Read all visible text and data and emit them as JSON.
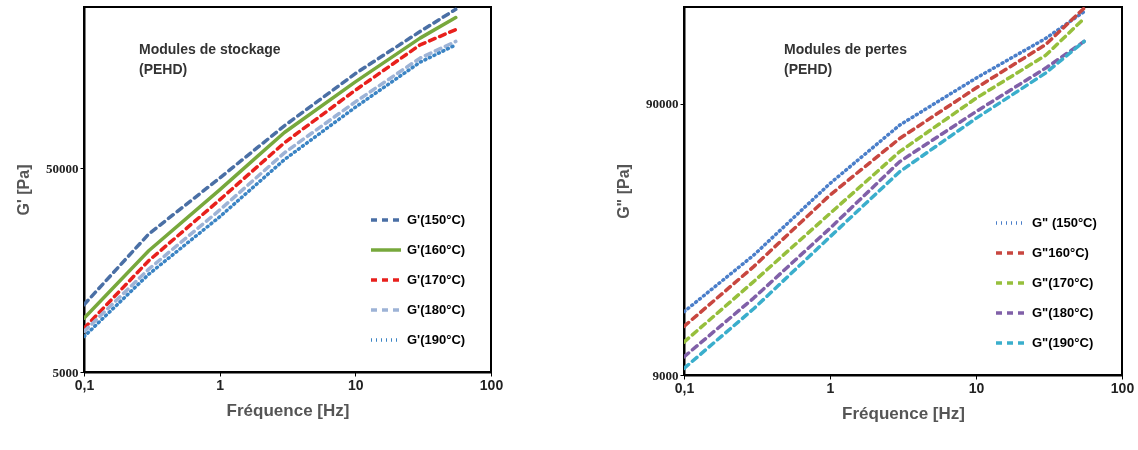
{
  "chart_data": [
    {
      "type": "line",
      "title": "Modules de stockage",
      "subtitle": "(PEHD)",
      "xlabel": "Fréquence [Hz]",
      "ylabel": "G' [Pa]",
      "log": "xy",
      "grid": false,
      "legend": "bottom right",
      "xlim": [
        0.1,
        100
      ],
      "xticks": [
        {
          "value": 0.1,
          "label": "0,1"
        },
        1,
        10,
        100
      ],
      "ylim": [
        5000,
        310000
      ],
      "yticks": [
        5000,
        50000
      ],
      "x": [
        0.1,
        0.3,
        1,
        3,
        10,
        30,
        55
      ],
      "series": [
        {
          "name": "G'(150°C)",
          "color": "#4a6fa5",
          "line_style": "dashed",
          "values": [
            10700,
            23800,
            44800,
            80900,
            146000,
            235000,
            302000
          ]
        },
        {
          "name": "G'(160°C)",
          "color": "#77a83c",
          "line_style": "solid",
          "values": [
            9180,
            19700,
            39200,
            75000,
            133000,
            218000,
            275000
          ]
        },
        {
          "name": "G'(170°C)",
          "color": "#e8201c",
          "line_style": "dashed",
          "values": [
            8190,
            17600,
            35000,
            66800,
            121000,
            202000,
            240000
          ]
        },
        {
          "name": "G'(180°C)",
          "color": "#9db3d6",
          "line_style": "dashed",
          "values": [
            7900,
            16000,
            31200,
            59600,
            106000,
            174000,
            210000
          ]
        },
        {
          "name": "G'(190°C)",
          "color": "#3b84c4",
          "line_style": "dotted",
          "values": [
            7460,
            15100,
            28900,
            55200,
            99800,
            166000,
            202000
          ]
        }
      ]
    },
    {
      "type": "line",
      "title": "Modules de pertes",
      "subtitle": "(PEHD)",
      "xlabel": "Fréquence [Hz]",
      "ylabel": "G\" [Pa]",
      "log": "xy",
      "grid": false,
      "legend": "bottom right",
      "xlim": [
        0.1,
        100
      ],
      "xticks": [
        {
          "value": 0.1,
          "label": "0,1"
        },
        1,
        10,
        100
      ],
      "ylim": [
        9000,
        205000
      ],
      "yticks": [
        9000,
        90000
      ],
      "x": [
        0.1,
        0.3,
        1,
        3,
        10,
        30,
        55
      ],
      "series": [
        {
          "name": "G\" (150°C)",
          "color": "#4a7ec9",
          "line_style": "dotted",
          "values": [
            15400,
            24900,
            45800,
            75200,
            112000,
            157000,
            197000
          ]
        },
        {
          "name": "G\"160°C)",
          "color": "#c8463f",
          "line_style": "dashed",
          "values": [
            13600,
            22600,
            41500,
            67100,
            103000,
            149000,
            203000
          ]
        },
        {
          "name": "G\"(170°C)",
          "color": "#96bf3c",
          "line_style": "dashed",
          "values": [
            11900,
            19900,
            35500,
            60000,
            94400,
            136000,
            186000
          ]
        },
        {
          "name": "G\"(180°C)",
          "color": "#8060a8",
          "line_style": "dashed",
          "values": [
            10500,
            17300,
            31300,
            55100,
            84300,
            122000,
            153000
          ]
        },
        {
          "name": "G\"(190°C)",
          "color": "#3aaecc",
          "line_style": "dashed",
          "values": [
            9520,
            15800,
            29100,
            50600,
            79600,
            117000,
            153000
          ]
        }
      ]
    }
  ]
}
